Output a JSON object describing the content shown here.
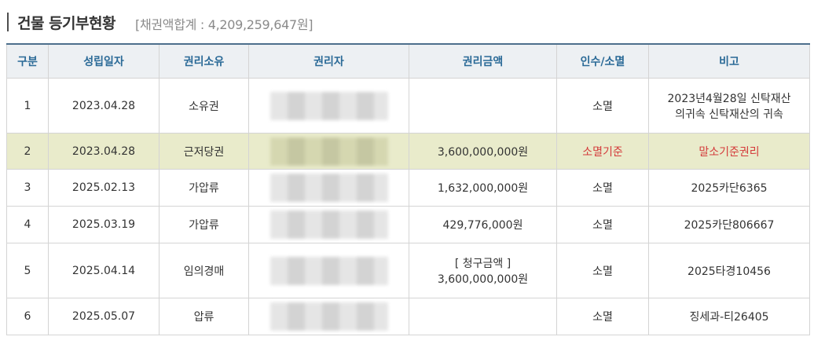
{
  "header": {
    "title": "건물 등기부현황",
    "subtitle": "[채권액합계 : 4,209,259,647원]"
  },
  "table": {
    "columns": [
      "구분",
      "성립일자",
      "권리소유",
      "권리자",
      "권리금액",
      "인수/소멸",
      "비고"
    ],
    "rows": [
      {
        "no": "1",
        "date": "2023.04.28",
        "type": "소유권",
        "holder": "",
        "amount": "",
        "amount2": "",
        "status": "소멸",
        "note": "2023년4월28일 신탁재산",
        "note2": "의귀속 신탁재산의 귀속"
      },
      {
        "no": "2",
        "date": "2023.04.28",
        "type": "근저당권",
        "holder": "",
        "amount": "3,600,000,000원",
        "amount2": "",
        "status": "소멸기준",
        "note": "말소기준권리",
        "note2": ""
      },
      {
        "no": "3",
        "date": "2025.02.13",
        "type": "가압류",
        "holder": "",
        "amount": "1,632,000,000원",
        "amount2": "",
        "status": "소멸",
        "note": "2025카단6365",
        "note2": ""
      },
      {
        "no": "4",
        "date": "2025.03.19",
        "type": "가압류",
        "holder": "",
        "amount": "429,776,000원",
        "amount2": "",
        "status": "소멸",
        "note": "2025카단806667",
        "note2": ""
      },
      {
        "no": "5",
        "date": "2025.04.14",
        "type": "임의경매",
        "holder": "",
        "amount": "[ 청구금액 ]",
        "amount2": "3,600,000,000원",
        "status": "소멸",
        "note": "2025타경10456",
        "note2": ""
      },
      {
        "no": "6",
        "date": "2025.05.07",
        "type": "압류",
        "holder": "",
        "amount": "",
        "amount2": "",
        "status": "소멸",
        "note": "징세과-티26405",
        "note2": ""
      }
    ]
  },
  "colors": {
    "header_text": "#2b6a97",
    "highlight_row": "#e9ebcb",
    "emphasis_text": "#d43a3a"
  }
}
